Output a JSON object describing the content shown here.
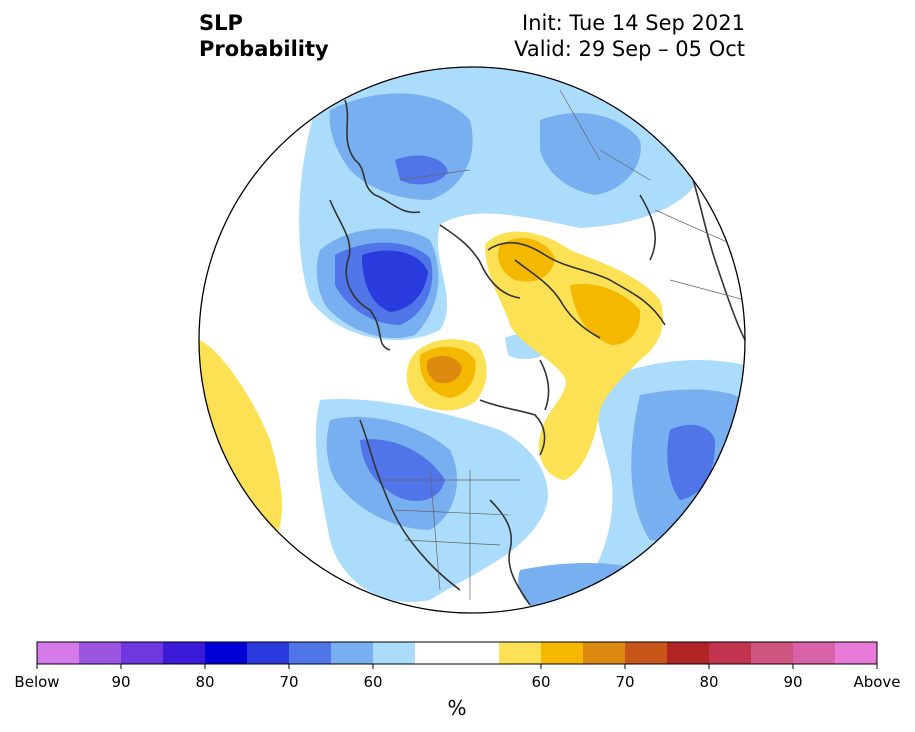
{
  "title": {
    "variable": "SLP",
    "subtitle": "Probability",
    "init": "Init: Tue 14 Sep 2021",
    "valid": "Valid: 29 Sep – 05 Oct"
  },
  "colorbar": {
    "colors": [
      "#d67ae9",
      "#9c55e1",
      "#6d38e0",
      "#3c1bd8",
      "#0000d6",
      "#2a3bdd",
      "#4f75e9",
      "#78aff0",
      "#acdcfb",
      "#ffffff",
      "#ffffff",
      "#fde154",
      "#f4b800",
      "#dd8b10",
      "#c85618",
      "#b02426",
      "#c2344e",
      "#d05480",
      "#d863a8",
      "#e87ad8"
    ],
    "labels": [
      {
        "text": "Below",
        "slot": 0
      },
      {
        "text": "90",
        "slot": 2
      },
      {
        "text": "80",
        "slot": 4
      },
      {
        "text": "70",
        "slot": 6
      },
      {
        "text": "60",
        "slot": 8
      },
      {
        "text": "60",
        "slot": 12
      },
      {
        "text": "70",
        "slot": 14
      },
      {
        "text": "80",
        "slot": 16
      },
      {
        "text": "90",
        "slot": 18
      },
      {
        "text": "Above",
        "slot": 20
      }
    ],
    "units": "%"
  }
}
